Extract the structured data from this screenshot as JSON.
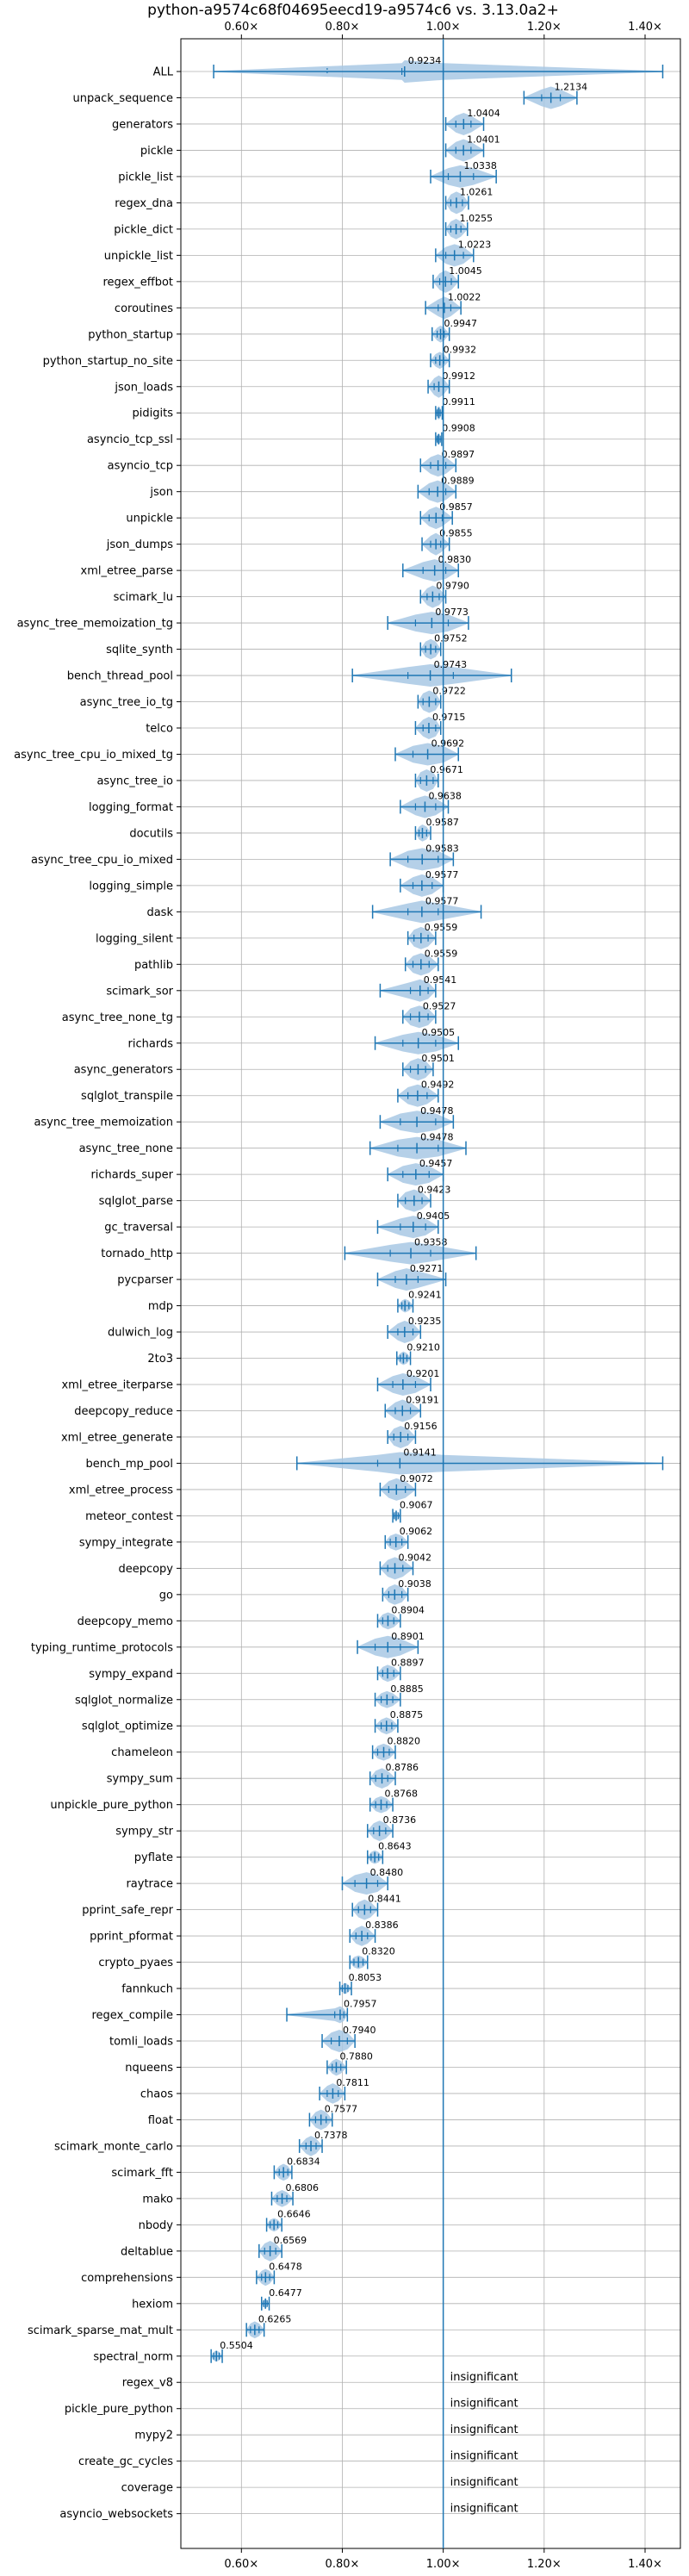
{
  "chart_data": {
    "type": "violin",
    "title": "python-a9574c68f04695eecd19-a9574c6 vs. 3.13.0a2+",
    "xlim": [
      0.48,
      1.47
    ],
    "xticks": [
      0.6,
      0.8,
      1.0,
      1.2,
      1.4
    ],
    "xtick_labels": [
      "0.60×",
      "0.80×",
      "1.00×",
      "1.20×",
      "1.40×"
    ],
    "reference_line": 1.0,
    "grid": true,
    "colors": {
      "violin": "#a8c8e4",
      "line": "#1f77b4",
      "grid": "#b0b0b0"
    },
    "insignificant_text": "insignificant",
    "benchmarks": [
      {
        "name": "ALL",
        "value": 0.9234,
        "label": "0.9234",
        "min": 0.545,
        "max": 1.435,
        "q1": 0.918,
        "q3": 1.0,
        "spread": 0.06,
        "mean_marker": 0.77
      },
      {
        "name": "unpack_sequence",
        "value": 1.2134,
        "label": "1.2134",
        "min": 1.16,
        "max": 1.265,
        "q1": 1.195,
        "q3": 1.232,
        "spread": 0.03
      },
      {
        "name": "generators",
        "value": 1.0404,
        "label": "1.0404",
        "min": 1.005,
        "max": 1.08,
        "q1": 1.025,
        "q3": 1.055,
        "spread": 0.025
      },
      {
        "name": "pickle",
        "value": 1.0401,
        "label": "1.0401",
        "min": 1.005,
        "max": 1.08,
        "q1": 1.025,
        "q3": 1.055,
        "spread": 0.025
      },
      {
        "name": "pickle_list",
        "value": 1.0338,
        "label": "1.0338",
        "min": 0.975,
        "max": 1.105,
        "q1": 1.01,
        "q3": 1.06,
        "spread": 0.035
      },
      {
        "name": "regex_dna",
        "value": 1.0261,
        "label": "1.0261",
        "min": 1.005,
        "max": 1.05,
        "q1": 1.015,
        "q3": 1.038,
        "spread": 0.02
      },
      {
        "name": "pickle_dict",
        "value": 1.0255,
        "label": "1.0255",
        "min": 1.005,
        "max": 1.048,
        "q1": 1.015,
        "q3": 1.035,
        "spread": 0.018
      },
      {
        "name": "unpickle_list",
        "value": 1.0223,
        "label": "1.0223",
        "min": 0.985,
        "max": 1.06,
        "q1": 1.005,
        "q3": 1.04,
        "spread": 0.025
      },
      {
        "name": "regex_effbot",
        "value": 1.0045,
        "label": "1.0045",
        "min": 0.98,
        "max": 1.03,
        "q1": 0.993,
        "q3": 1.016,
        "spread": 0.02
      },
      {
        "name": "coroutines",
        "value": 1.0022,
        "label": "1.0022",
        "min": 0.965,
        "max": 1.035,
        "q1": 0.99,
        "q3": 1.015,
        "spread": 0.025
      },
      {
        "name": "python_startup",
        "value": 0.9947,
        "label": "0.9947",
        "min": 0.978,
        "max": 1.012,
        "q1": 0.988,
        "q3": 1.002,
        "spread": 0.015
      },
      {
        "name": "python_startup_no_site",
        "value": 0.9932,
        "label": "0.9932",
        "min": 0.975,
        "max": 1.012,
        "q1": 0.985,
        "q3": 1.001,
        "spread": 0.015
      },
      {
        "name": "json_loads",
        "value": 0.9912,
        "label": "0.9912",
        "min": 0.97,
        "max": 1.012,
        "q1": 0.982,
        "q3": 1.0,
        "spread": 0.02
      },
      {
        "name": "pidigits",
        "value": 0.9911,
        "label": "0.9911",
        "min": 0.985,
        "max": 0.998,
        "q1": 0.988,
        "q3": 0.994,
        "spread": 0.012
      },
      {
        "name": "asyncio_tcp_ssl",
        "value": 0.9908,
        "label": "0.9908",
        "min": 0.985,
        "max": 0.997,
        "q1": 0.988,
        "q3": 0.994,
        "spread": 0.01
      },
      {
        "name": "asyncio_tcp",
        "value": 0.9897,
        "label": "0.9897",
        "min": 0.955,
        "max": 1.025,
        "q1": 0.975,
        "q3": 1.005,
        "spread": 0.025
      },
      {
        "name": "json",
        "value": 0.9889,
        "label": "0.9889",
        "min": 0.95,
        "max": 1.025,
        "q1": 0.972,
        "q3": 1.005,
        "spread": 0.025
      },
      {
        "name": "unpickle",
        "value": 0.9857,
        "label": "0.9857",
        "min": 0.955,
        "max": 1.018,
        "q1": 0.972,
        "q3": 0.998,
        "spread": 0.025
      },
      {
        "name": "json_dumps",
        "value": 0.9855,
        "label": "0.9855",
        "min": 0.958,
        "max": 1.012,
        "q1": 0.975,
        "q3": 0.995,
        "spread": 0.02
      },
      {
        "name": "xml_etree_parse",
        "value": 0.983,
        "label": "0.9830",
        "min": 0.92,
        "max": 1.03,
        "q1": 0.96,
        "q3": 1.005,
        "spread": 0.03
      },
      {
        "name": "scimark_lu",
        "value": 0.979,
        "label": "0.9790",
        "min": 0.955,
        "max": 1.005,
        "q1": 0.968,
        "q3": 0.992,
        "spread": 0.02
      },
      {
        "name": "async_tree_memoization_tg",
        "value": 0.9773,
        "label": "0.9773",
        "min": 0.89,
        "max": 1.05,
        "q1": 0.945,
        "q3": 1.01,
        "spread": 0.06
      },
      {
        "name": "sqlite_synth",
        "value": 0.9752,
        "label": "0.9752",
        "min": 0.955,
        "max": 0.995,
        "q1": 0.965,
        "q3": 0.985,
        "spread": 0.018
      },
      {
        "name": "bench_thread_pool",
        "value": 0.9743,
        "label": "0.9743",
        "min": 0.82,
        "max": 1.135,
        "q1": 0.93,
        "q3": 1.02,
        "spread": 0.12
      },
      {
        "name": "async_tree_io_tg",
        "value": 0.9722,
        "label": "0.9722",
        "min": 0.95,
        "max": 0.995,
        "q1": 0.96,
        "q3": 0.985,
        "spread": 0.02
      },
      {
        "name": "telco",
        "value": 0.9715,
        "label": "0.9715",
        "min": 0.945,
        "max": 0.995,
        "q1": 0.96,
        "q3": 0.985,
        "spread": 0.02
      },
      {
        "name": "async_tree_cpu_io_mixed_tg",
        "value": 0.9692,
        "label": "0.9692",
        "min": 0.905,
        "max": 1.03,
        "q1": 0.94,
        "q3": 1.0,
        "spread": 0.045
      },
      {
        "name": "async_tree_io",
        "value": 0.9671,
        "label": "0.9671",
        "min": 0.945,
        "max": 0.99,
        "q1": 0.955,
        "q3": 0.98,
        "spread": 0.02
      },
      {
        "name": "logging_format",
        "value": 0.9638,
        "label": "0.9638",
        "min": 0.915,
        "max": 1.01,
        "q1": 0.945,
        "q3": 0.985,
        "spread": 0.035
      },
      {
        "name": "docutils",
        "value": 0.9587,
        "label": "0.9587",
        "min": 0.945,
        "max": 0.975,
        "q1": 0.952,
        "q3": 0.967,
        "spread": 0.015
      },
      {
        "name": "async_tree_cpu_io_mixed",
        "value": 0.9583,
        "label": "0.9583",
        "min": 0.895,
        "max": 1.02,
        "q1": 0.93,
        "q3": 0.99,
        "spread": 0.045
      },
      {
        "name": "logging_simple",
        "value": 0.9577,
        "label": "0.9577",
        "min": 0.915,
        "max": 1.0,
        "q1": 0.94,
        "q3": 0.978,
        "spread": 0.03
      },
      {
        "name": "dask",
        "value": 0.9577,
        "label": "0.9577",
        "min": 0.86,
        "max": 1.075,
        "q1": 0.93,
        "q3": 0.99,
        "spread": 0.05
      },
      {
        "name": "logging_silent",
        "value": 0.9559,
        "label": "0.9559",
        "min": 0.93,
        "max": 0.985,
        "q1": 0.942,
        "q3": 0.97,
        "spread": 0.02
      },
      {
        "name": "pathlib",
        "value": 0.9559,
        "label": "0.9559",
        "min": 0.925,
        "max": 0.99,
        "q1": 0.94,
        "q3": 0.972,
        "spread": 0.025
      },
      {
        "name": "scimark_sor",
        "value": 0.9541,
        "label": "0.9541",
        "min": 0.875,
        "max": 0.985,
        "q1": 0.935,
        "q3": 0.97,
        "spread": 0.025
      },
      {
        "name": "async_tree_none_tg",
        "value": 0.9527,
        "label": "0.9527",
        "min": 0.92,
        "max": 0.985,
        "q1": 0.935,
        "q3": 0.97,
        "spread": 0.025
      },
      {
        "name": "richards",
        "value": 0.9505,
        "label": "0.9505",
        "min": 0.865,
        "max": 1.03,
        "q1": 0.92,
        "q3": 0.985,
        "spread": 0.04
      },
      {
        "name": "async_generators",
        "value": 0.9501,
        "label": "0.9501",
        "min": 0.92,
        "max": 0.98,
        "q1": 0.935,
        "q3": 0.965,
        "spread": 0.02
      },
      {
        "name": "sqlglot_transpile",
        "value": 0.9492,
        "label": "0.9492",
        "min": 0.91,
        "max": 0.99,
        "q1": 0.93,
        "q3": 0.968,
        "spread": 0.025
      },
      {
        "name": "async_tree_memoization",
        "value": 0.9478,
        "label": "0.9478",
        "min": 0.875,
        "max": 1.02,
        "q1": 0.915,
        "q3": 0.985,
        "spread": 0.055
      },
      {
        "name": "async_tree_none",
        "value": 0.9478,
        "label": "0.9478",
        "min": 0.855,
        "max": 1.045,
        "q1": 0.91,
        "q3": 0.99,
        "spread": 0.075
      },
      {
        "name": "richards_super",
        "value": 0.9457,
        "label": "0.9457",
        "min": 0.89,
        "max": 1.0,
        "q1": 0.92,
        "q3": 0.972,
        "spread": 0.035
      },
      {
        "name": "sqlglot_parse",
        "value": 0.9423,
        "label": "0.9423",
        "min": 0.91,
        "max": 0.975,
        "q1": 0.925,
        "q3": 0.958,
        "spread": 0.02
      },
      {
        "name": "gc_traversal",
        "value": 0.9405,
        "label": "0.9405",
        "min": 0.87,
        "max": 0.99,
        "q1": 0.915,
        "q3": 0.965,
        "spread": 0.03
      },
      {
        "name": "tornado_http",
        "value": 0.9358,
        "label": "0.9358",
        "min": 0.805,
        "max": 1.065,
        "q1": 0.895,
        "q3": 0.975,
        "spread": 0.07
      },
      {
        "name": "pycparser",
        "value": 0.9271,
        "label": "0.9271",
        "min": 0.87,
        "max": 1.005,
        "q1": 0.905,
        "q3": 0.95,
        "spread": 0.025
      },
      {
        "name": "mdp",
        "value": 0.9241,
        "label": "0.9241",
        "min": 0.91,
        "max": 0.94,
        "q1": 0.918,
        "q3": 0.932,
        "spread": 0.012
      },
      {
        "name": "dulwich_log",
        "value": 0.9235,
        "label": "0.9235",
        "min": 0.89,
        "max": 0.955,
        "q1": 0.91,
        "q3": 0.94,
        "spread": 0.02
      },
      {
        "name": "2to3",
        "value": 0.921,
        "label": "0.9210",
        "min": 0.908,
        "max": 0.935,
        "q1": 0.915,
        "q3": 0.928,
        "spread": 0.012
      },
      {
        "name": "xml_etree_iterparse",
        "value": 0.9201,
        "label": "0.9201",
        "min": 0.87,
        "max": 0.975,
        "q1": 0.9,
        "q3": 0.945,
        "spread": 0.035
      },
      {
        "name": "deepcopy_reduce",
        "value": 0.9191,
        "label": "0.9191",
        "min": 0.885,
        "max": 0.955,
        "q1": 0.905,
        "q3": 0.935,
        "spread": 0.02
      },
      {
        "name": "xml_etree_generate",
        "value": 0.9156,
        "label": "0.9156",
        "min": 0.89,
        "max": 0.945,
        "q1": 0.902,
        "q3": 0.93,
        "spread": 0.02
      },
      {
        "name": "bench_mp_pool",
        "value": 0.9141,
        "label": "0.9141",
        "min": 0.71,
        "max": 1.435,
        "q1": 0.87,
        "q3": 1.0,
        "spread": 0.08
      },
      {
        "name": "xml_etree_process",
        "value": 0.9072,
        "label": "0.9072",
        "min": 0.875,
        "max": 0.945,
        "q1": 0.892,
        "q3": 0.925,
        "spread": 0.022
      },
      {
        "name": "meteor_contest",
        "value": 0.9067,
        "label": "0.9067",
        "min": 0.9,
        "max": 0.915,
        "q1": 0.903,
        "q3": 0.911,
        "spread": 0.008
      },
      {
        "name": "sympy_integrate",
        "value": 0.9062,
        "label": "0.9062",
        "min": 0.885,
        "max": 0.93,
        "q1": 0.895,
        "q3": 0.918,
        "spread": 0.015
      },
      {
        "name": "deepcopy",
        "value": 0.9042,
        "label": "0.9042",
        "min": 0.875,
        "max": 0.94,
        "q1": 0.89,
        "q3": 0.92,
        "spread": 0.02
      },
      {
        "name": "go",
        "value": 0.9038,
        "label": "0.9038",
        "min": 0.88,
        "max": 0.93,
        "q1": 0.892,
        "q3": 0.918,
        "spread": 0.018
      },
      {
        "name": "deepcopy_memo",
        "value": 0.8904,
        "label": "0.8904",
        "min": 0.87,
        "max": 0.915,
        "q1": 0.88,
        "q3": 0.902,
        "spread": 0.015
      },
      {
        "name": "typing_runtime_protocols",
        "value": 0.8901,
        "label": "0.8901",
        "min": 0.83,
        "max": 0.95,
        "q1": 0.865,
        "q3": 0.915,
        "spread": 0.035
      },
      {
        "name": "sympy_expand",
        "value": 0.8897,
        "label": "0.8897",
        "min": 0.87,
        "max": 0.915,
        "q1": 0.88,
        "q3": 0.902,
        "spread": 0.015
      },
      {
        "name": "sqlglot_normalize",
        "value": 0.8885,
        "label": "0.8885",
        "min": 0.865,
        "max": 0.915,
        "q1": 0.877,
        "q3": 0.9,
        "spread": 0.015
      },
      {
        "name": "sqlglot_optimize",
        "value": 0.8875,
        "label": "0.8875",
        "min": 0.865,
        "max": 0.91,
        "q1": 0.877,
        "q3": 0.898,
        "spread": 0.015
      },
      {
        "name": "chameleon",
        "value": 0.882,
        "label": "0.8820",
        "min": 0.86,
        "max": 0.905,
        "q1": 0.87,
        "q3": 0.893,
        "spread": 0.015
      },
      {
        "name": "sympy_sum",
        "value": 0.8786,
        "label": "0.8786",
        "min": 0.855,
        "max": 0.905,
        "q1": 0.866,
        "q3": 0.89,
        "spread": 0.018
      },
      {
        "name": "unpickle_pure_python",
        "value": 0.8768,
        "label": "0.8768",
        "min": 0.855,
        "max": 0.9,
        "q1": 0.866,
        "q3": 0.888,
        "spread": 0.015
      },
      {
        "name": "sympy_str",
        "value": 0.8736,
        "label": "0.8736",
        "min": 0.85,
        "max": 0.9,
        "q1": 0.862,
        "q3": 0.886,
        "spread": 0.018
      },
      {
        "name": "pyflate",
        "value": 0.8643,
        "label": "0.8643",
        "min": 0.85,
        "max": 0.88,
        "q1": 0.857,
        "q3": 0.872,
        "spread": 0.012
      },
      {
        "name": "raytrace",
        "value": 0.848,
        "label": "0.8480",
        "min": 0.8,
        "max": 0.89,
        "q1": 0.825,
        "q3": 0.87,
        "spread": 0.03
      },
      {
        "name": "pprint_safe_repr",
        "value": 0.8441,
        "label": "0.8441",
        "min": 0.82,
        "max": 0.87,
        "q1": 0.832,
        "q3": 0.856,
        "spread": 0.018
      },
      {
        "name": "pprint_pformat",
        "value": 0.8386,
        "label": "0.8386",
        "min": 0.815,
        "max": 0.865,
        "q1": 0.827,
        "q3": 0.85,
        "spread": 0.018
      },
      {
        "name": "crypto_pyaes",
        "value": 0.832,
        "label": "0.8320",
        "min": 0.815,
        "max": 0.85,
        "q1": 0.823,
        "q3": 0.841,
        "spread": 0.012
      },
      {
        "name": "fannkuch",
        "value": 0.8053,
        "label": "0.8053",
        "min": 0.795,
        "max": 0.818,
        "q1": 0.8,
        "q3": 0.811,
        "spread": 0.01
      },
      {
        "name": "regex_compile",
        "value": 0.7957,
        "label": "0.7957",
        "min": 0.69,
        "max": 0.81,
        "q1": 0.785,
        "q3": 0.803,
        "spread": 0.015
      },
      {
        "name": "tomli_loads",
        "value": 0.794,
        "label": "0.7940",
        "min": 0.76,
        "max": 0.825,
        "q1": 0.778,
        "q3": 0.81,
        "spread": 0.025
      },
      {
        "name": "nqueens",
        "value": 0.788,
        "label": "0.7880",
        "min": 0.77,
        "max": 0.808,
        "q1": 0.78,
        "q3": 0.797,
        "spread": 0.015
      },
      {
        "name": "chaos",
        "value": 0.7811,
        "label": "0.7811",
        "min": 0.755,
        "max": 0.805,
        "q1": 0.77,
        "q3": 0.792,
        "spread": 0.018
      },
      {
        "name": "float",
        "value": 0.7577,
        "label": "0.7577",
        "min": 0.735,
        "max": 0.78,
        "q1": 0.747,
        "q3": 0.768,
        "spread": 0.018
      },
      {
        "name": "scimark_monte_carlo",
        "value": 0.7378,
        "label": "0.7378",
        "min": 0.715,
        "max": 0.76,
        "q1": 0.728,
        "q3": 0.748,
        "spread": 0.018
      },
      {
        "name": "scimark_fft",
        "value": 0.6834,
        "label": "0.6834",
        "min": 0.665,
        "max": 0.7,
        "q1": 0.675,
        "q3": 0.692,
        "spread": 0.015
      },
      {
        "name": "mako",
        "value": 0.6806,
        "label": "0.6806",
        "min": 0.66,
        "max": 0.702,
        "q1": 0.671,
        "q3": 0.69,
        "spread": 0.015
      },
      {
        "name": "nbody",
        "value": 0.6646,
        "label": "0.6646",
        "min": 0.65,
        "max": 0.68,
        "q1": 0.657,
        "q3": 0.672,
        "spread": 0.012
      },
      {
        "name": "deltablue",
        "value": 0.6569,
        "label": "0.6569",
        "min": 0.635,
        "max": 0.68,
        "q1": 0.646,
        "q3": 0.668,
        "spread": 0.018
      },
      {
        "name": "comprehensions",
        "value": 0.6478,
        "label": "0.6478",
        "min": 0.63,
        "max": 0.665,
        "q1": 0.64,
        "q3": 0.656,
        "spread": 0.015
      },
      {
        "name": "hexiom",
        "value": 0.6477,
        "label": "0.6477",
        "min": 0.64,
        "max": 0.655,
        "q1": 0.644,
        "q3": 0.651,
        "spread": 0.008
      },
      {
        "name": "scimark_sparse_mat_mult",
        "value": 0.6265,
        "label": "0.6265",
        "min": 0.61,
        "max": 0.645,
        "q1": 0.618,
        "q3": 0.635,
        "spread": 0.015
      },
      {
        "name": "spectral_norm",
        "value": 0.5504,
        "label": "0.5504",
        "min": 0.54,
        "max": 0.562,
        "q1": 0.545,
        "q3": 0.556,
        "spread": 0.01
      },
      {
        "name": "regex_v8",
        "insignificant": true
      },
      {
        "name": "pickle_pure_python",
        "insignificant": true
      },
      {
        "name": "mypy2",
        "insignificant": true
      },
      {
        "name": "create_gc_cycles",
        "insignificant": true
      },
      {
        "name": "coverage",
        "insignificant": true
      },
      {
        "name": "asyncio_websockets",
        "insignificant": true
      }
    ]
  }
}
